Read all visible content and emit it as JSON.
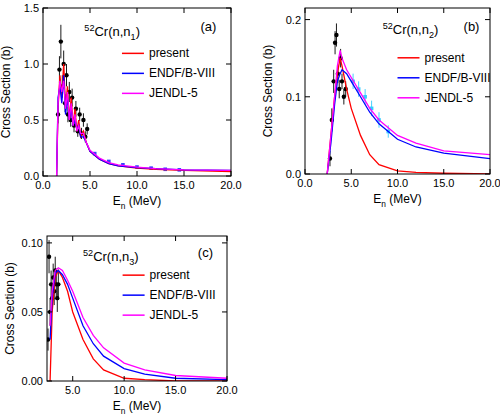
{
  "chart_data": [
    {
      "type": "line",
      "title": "52Cr(n,n1)",
      "annotations": [
        "(a)"
      ],
      "x_label": "En (MeV)",
      "y_label": "Cross Section (b)",
      "xlim": [
        0,
        20
      ],
      "ylim": [
        0,
        1.5
      ],
      "xticks": [
        {
          "value": 0,
          "label": "0.0"
        },
        {
          "value": 5,
          "label": "5.0"
        },
        {
          "value": 10,
          "label": "10.0"
        },
        {
          "value": 15,
          "label": "15.0"
        },
        {
          "value": 20,
          "label": "20.0"
        }
      ],
      "yticks": [
        {
          "value": 0,
          "label": "0.0"
        },
        {
          "value": 0.5,
          "label": "0.5"
        },
        {
          "value": 1,
          "label": "1.0"
        },
        1.5
      ],
      "grid": false,
      "legend": "upper right",
      "series": [
        {
          "type": "scatter",
          "color": "#000000",
          "marker": "circle",
          "x": [
            1.6,
            1.75,
            1.9,
            2.05,
            2.2,
            2.35,
            2.5,
            2.65,
            2.8,
            2.95,
            3.1,
            3.3,
            3.5,
            3.7,
            3.9,
            4.1,
            4.3,
            4.5,
            4.7
          ],
          "values": [
            0.55,
            0.95,
            1.2,
            0.8,
            1.0,
            0.65,
            0.9,
            0.55,
            0.75,
            0.5,
            0.7,
            0.45,
            0.6,
            0.4,
            0.55,
            0.38,
            0.5,
            0.35,
            0.42
          ],
          "errors": [
            0.08,
            0.12,
            0.15,
            0.1,
            0.12,
            0.08,
            0.1,
            0.07,
            0.09,
            0.06,
            0.08,
            0.06,
            0.07,
            0.05,
            0.06,
            0.05,
            0.06,
            0.05,
            0.05
          ]
        },
        {
          "type": "scatter",
          "color": "#3344ff",
          "marker": "square",
          "x": [
            5.5,
            7,
            8.5,
            10,
            11.5,
            13,
            14.5
          ],
          "values": [
            0.2,
            0.13,
            0.1,
            0.08,
            0.07,
            0.06,
            0.055
          ]
        },
        {
          "name": "present",
          "color": "#ff0000",
          "line_style": "solid",
          "x": [
            1.45,
            1.6,
            1.8,
            2.0,
            2.2,
            2.4,
            2.6,
            2.8,
            3.0,
            3.2,
            3.4,
            3.6,
            3.8,
            4.0,
            4.3,
            4.6,
            5.0,
            6,
            7,
            8,
            10,
            12,
            15,
            20
          ],
          "values": [
            0,
            0.6,
            0.9,
            0.7,
            1.0,
            0.6,
            0.8,
            0.5,
            0.7,
            0.45,
            0.6,
            0.4,
            0.5,
            0.35,
            0.4,
            0.3,
            0.22,
            0.15,
            0.11,
            0.09,
            0.07,
            0.06,
            0.05,
            0.04
          ]
        },
        {
          "name": "ENDF/B-VIII",
          "color": "#0000ff",
          "line_style": "solid",
          "x": [
            1.45,
            1.6,
            1.8,
            2.0,
            2.2,
            2.4,
            2.6,
            2.8,
            3.0,
            3.2,
            3.4,
            3.6,
            3.8,
            4.0,
            4.3,
            4.6,
            5.0,
            6,
            7,
            8,
            10,
            12,
            15,
            20
          ],
          "values": [
            0,
            0.7,
            0.8,
            0.65,
            0.9,
            0.55,
            0.7,
            0.5,
            0.6,
            0.45,
            0.5,
            0.42,
            0.45,
            0.35,
            0.35,
            0.3,
            0.22,
            0.15,
            0.11,
            0.09,
            0.075,
            0.065,
            0.055,
            0.05
          ]
        },
        {
          "name": "JENDL-5",
          "color": "#ff00ff",
          "line_style": "solid",
          "x": [
            1.45,
            1.6,
            1.8,
            2.0,
            2.2,
            2.4,
            2.6,
            2.8,
            3.0,
            3.2,
            3.4,
            3.6,
            3.8,
            4.0,
            4.3,
            4.6,
            5.0,
            6,
            7,
            8,
            10,
            12,
            15,
            20
          ],
          "values": [
            0,
            0.65,
            0.85,
            0.75,
            0.85,
            0.6,
            0.75,
            0.5,
            0.65,
            0.45,
            0.55,
            0.4,
            0.45,
            0.38,
            0.38,
            0.3,
            0.23,
            0.16,
            0.12,
            0.1,
            0.08,
            0.065,
            0.055,
            0.05
          ]
        }
      ]
    },
    {
      "type": "line",
      "title": "52Cr(n,n2)",
      "annotations": [
        "(b)"
      ],
      "x_label": "En (MeV)",
      "y_label": "Cross Section (b)",
      "xlim": [
        0,
        20
      ],
      "ylim": [
        0,
        0.215
      ],
      "xticks": [
        {
          "value": 0,
          "label": "0.0"
        },
        {
          "value": 5,
          "label": "5.0"
        },
        {
          "value": 10,
          "label": "10.0"
        },
        {
          "value": 15,
          "label": "15.0"
        },
        {
          "value": 20,
          "label": "20.0"
        }
      ],
      "yticks": [
        {
          "value": 0,
          "label": "0.0"
        },
        0.1,
        0.2
      ],
      "grid": false,
      "legend": "upper right",
      "series": [
        {
          "type": "scatter",
          "color": "#000000",
          "marker": "circle",
          "x": [
            2.7,
            2.9,
            3.1,
            3.25,
            3.4,
            3.55,
            3.7,
            3.85,
            4.0,
            4.2,
            4.4
          ],
          "values": [
            0.02,
            0.07,
            0.12,
            0.17,
            0.18,
            0.13,
            0.11,
            0.15,
            0.12,
            0.1,
            0.11
          ],
          "errors": [
            0.01,
            0.015,
            0.015,
            0.015,
            0.015,
            0.012,
            0.012,
            0.012,
            0.01,
            0.01,
            0.01
          ]
        },
        {
          "type": "scatter",
          "color": "#33ccff",
          "marker": "square",
          "x": [
            5.2,
            5.8,
            6.5,
            7.2,
            8.0,
            9.0
          ],
          "values": [
            0.12,
            0.11,
            0.1,
            0.085,
            0.07,
            0.055
          ],
          "errors": [
            0.01,
            0.01,
            0.01,
            0.01,
            0.01,
            0.008
          ]
        },
        {
          "name": "present",
          "color": "#ff0000",
          "line_style": "solid",
          "x": [
            2.4,
            2.8,
            3.2,
            3.5,
            3.8,
            4.0,
            4.5,
            5,
            6,
            7,
            8,
            10,
            12,
            15,
            20
          ],
          "values": [
            0,
            0.05,
            0.1,
            0.13,
            0.15,
            0.14,
            0.11,
            0.085,
            0.05,
            0.025,
            0.012,
            0.004,
            0.002,
            0.001,
            0
          ]
        },
        {
          "name": "ENDF/B-VIII",
          "color": "#0000ff",
          "line_style": "solid",
          "x": [
            2.4,
            2.8,
            3.2,
            3.5,
            3.8,
            4.0,
            4.5,
            5,
            6,
            7,
            8,
            10,
            12,
            15,
            20
          ],
          "values": [
            0,
            0.04,
            0.09,
            0.12,
            0.13,
            0.135,
            0.13,
            0.12,
            0.1,
            0.08,
            0.065,
            0.045,
            0.035,
            0.027,
            0.02
          ]
        },
        {
          "name": "JENDL-5",
          "color": "#ff00ff",
          "line_style": "solid",
          "x": [
            2.4,
            2.8,
            3.2,
            3.5,
            3.8,
            4.0,
            4.5,
            5,
            6,
            7,
            8,
            10,
            12,
            15,
            20
          ],
          "values": [
            0,
            0.05,
            0.1,
            0.14,
            0.16,
            0.15,
            0.135,
            0.125,
            0.105,
            0.085,
            0.07,
            0.05,
            0.04,
            0.03,
            0.025
          ]
        }
      ]
    },
    {
      "type": "line",
      "title": "52Cr(n,n3)",
      "annotations": [
        "(c)"
      ],
      "x_label": "En (MeV)",
      "y_label": "Cross Section (b)",
      "xlim": [
        2.5,
        20
      ],
      "ylim": [
        0,
        0.105
      ],
      "xticks": [
        {
          "value": 5,
          "label": "5.0"
        },
        {
          "value": 10,
          "label": "10.0"
        },
        {
          "value": 15,
          "label": "15.0"
        },
        {
          "value": 20,
          "label": "20.0"
        }
      ],
      "yticks": [
        {
          "value": 0,
          "label": "0.00"
        },
        0.05,
        {
          "value": 0.1,
          "label": "0.10"
        }
      ],
      "grid": false,
      "legend": "upper right",
      "series": [
        {
          "type": "scatter",
          "color": "#000000",
          "marker": "circle",
          "x": [
            2.6,
            2.7,
            2.8,
            2.9,
            3.0,
            3.1,
            3.2,
            3.3,
            3.4,
            3.5,
            3.6
          ],
          "values": [
            0.03,
            0.09,
            0.05,
            0.07,
            0.06,
            0.075,
            0.065,
            0.08,
            0.07,
            0.06,
            0.07
          ],
          "errors": [
            0.008,
            0.012,
            0.01,
            0.01,
            0.01,
            0.01,
            0.01,
            0.01,
            0.01,
            0.01,
            0.01
          ]
        },
        {
          "name": "present",
          "color": "#ff0000",
          "line_style": "solid",
          "x": [
            2.8,
            3.0,
            3.3,
            3.6,
            4,
            4.5,
            5,
            6,
            7,
            8,
            10,
            12,
            15,
            20
          ],
          "values": [
            0.0,
            0.05,
            0.075,
            0.08,
            0.075,
            0.065,
            0.05,
            0.03,
            0.016,
            0.008,
            0.002,
            0.001,
            0,
            0
          ]
        },
        {
          "name": "ENDF/B-VIII",
          "color": "#0000ff",
          "line_style": "solid",
          "x": [
            2.8,
            3.0,
            3.3,
            3.6,
            4,
            4.5,
            5,
            6,
            7,
            8,
            10,
            12,
            15,
            20
          ],
          "values": [
            0.03,
            0.06,
            0.078,
            0.08,
            0.077,
            0.07,
            0.06,
            0.04,
            0.027,
            0.018,
            0.009,
            0.005,
            0.002,
            0.001
          ]
        },
        {
          "name": "JENDL-5",
          "color": "#ff00ff",
          "line_style": "solid",
          "x": [
            2.8,
            3.0,
            3.3,
            3.6,
            4,
            4.5,
            5,
            6,
            7,
            8,
            10,
            12,
            15,
            20
          ],
          "values": [
            0.04,
            0.065,
            0.08,
            0.082,
            0.08,
            0.073,
            0.065,
            0.046,
            0.033,
            0.024,
            0.013,
            0.008,
            0.004,
            0.002
          ]
        }
      ]
    }
  ]
}
